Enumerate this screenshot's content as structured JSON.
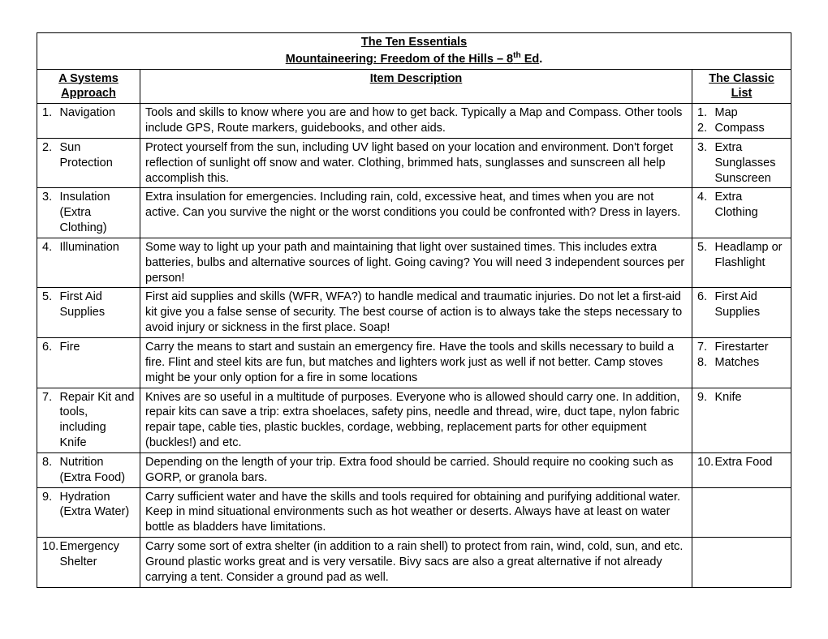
{
  "title_line1": "The Ten Essentials",
  "title_line2_pre": "Mountaineering: Freedom of the Hills – 8",
  "title_line2_sup": "th",
  "title_line2_post": " Ed",
  "header_systems": "A Systems Approach",
  "header_desc": "Item Description",
  "header_classic": "The Classic List",
  "rows": [
    {
      "n": "1.",
      "sys": "Navigation",
      "desc": "Tools and skills to know where you are and how to get back.  Typically a Map and Compass.  Other tools include GPS, Route markers, guidebooks, and other aids.",
      "classic": [
        {
          "n": "1.",
          "t": "Map"
        },
        {
          "n": "2.",
          "t": "Compass"
        }
      ]
    },
    {
      "n": "2.",
      "sys": "Sun Protection",
      "desc": "Protect yourself from the sun, including UV light based on your location and environment.  Don't forget reflection of sunlight off snow and water.  Clothing, brimmed hats, sunglasses and sunscreen all help accomplish this.",
      "classic": [
        {
          "n": "3.",
          "t": "Extra Sunglasses Sunscreen"
        }
      ]
    },
    {
      "n": "3.",
      "sys": "Insulation (Extra Clothing)",
      "desc": "Extra insulation for emergencies. Including rain, cold, excessive heat, and times when you are not active.  Can you survive the night or the worst conditions you could be confronted with? Dress in layers.",
      "classic": [
        {
          "n": "4.",
          "t": "Extra Clothing"
        }
      ]
    },
    {
      "n": "4.",
      "sys": "Illumination",
      "desc": "Some way to light up your path and maintaining that light over sustained times.  This includes extra batteries, bulbs and alternative sources of light.  Going caving? You will need 3 independent sources per person!",
      "classic": [
        {
          "n": "5.",
          "t": "Headlamp or Flashlight"
        }
      ]
    },
    {
      "n": "5.",
      "sys": "First Aid Supplies",
      "desc": "First aid supplies and skills (WFR, WFA?) to handle medical and traumatic injuries.  Do not let a first-aid kit give you a false sense of security.  The best course of action is to always take the steps necessary to avoid injury or sickness in the first place.  Soap!",
      "classic": [
        {
          "n": "6.",
          "t": "First Aid Supplies"
        }
      ]
    },
    {
      "n": "6.",
      "sys": "Fire",
      "desc": "Carry the means to start and sustain an emergency fire.  Have the tools and skills necessary to build a fire.  Flint and steel kits are fun, but matches and lighters work just as well if not better.  Camp stoves might be your only option for a fire in some locations",
      "classic": [
        {
          "n": "7.",
          "t": "Firestarter"
        },
        {
          "n": "8.",
          "t": " Matches"
        }
      ]
    },
    {
      "n": "7.",
      "sys": "Repair Kit and tools, including Knife",
      "desc": "Knives are so useful in a multitude of purposes.  Everyone who is allowed should carry one.  In addition, repair kits can save a trip: extra shoelaces, safety pins, needle and thread, wire, duct tape, nylon fabric repair tape, cable ties, plastic buckles, cordage, webbing, replacement parts for other equipment (buckles!) and etc.",
      "classic": [
        {
          "n": "9.",
          "t": "Knife"
        }
      ]
    },
    {
      "n": "8.",
      "sys": "Nutrition (Extra Food)",
      "desc": "Depending on the length of your trip.  Extra food should be carried.  Should require no cooking such as GORP, or granola bars.",
      "classic": [
        {
          "n": "10.",
          "t": "Extra Food"
        }
      ]
    },
    {
      "n": "9.",
      "sys": "Hydration (Extra Water)",
      "desc": "Carry sufficient water and have the skills and tools required for obtaining and purifying additional water.  Keep in mind situational environments such as hot weather or deserts.  Always have at least on water bottle as bladders have limitations.",
      "classic": []
    },
    {
      "n": "10.",
      "sys": "Emergency Shelter",
      "desc": "Carry some sort of extra shelter (in addition to a rain shell) to protect from rain, wind, cold, sun, and etc. Ground plastic works great and is very versatile.  Bivy sacs are also a great alternative if not already carrying a tent.  Consider a ground pad as well.",
      "classic": []
    }
  ],
  "colors": {
    "border": "#000000",
    "text": "#000000",
    "background": "#ffffff"
  },
  "font": {
    "family": "Comic Sans MS",
    "size_pt": 12
  }
}
